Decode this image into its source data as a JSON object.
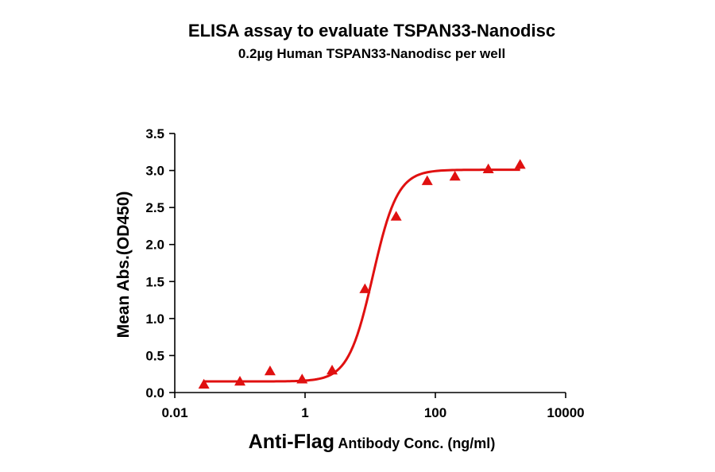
{
  "chart_data": {
    "type": "scatter",
    "title": "ELISA assay to evaluate TSPAN33-Nanodisc",
    "subtitle": "0.2µg Human TSPAN33-Nanodisc per well",
    "xlabel_bold": "Anti-Flag",
    "xlabel_rest": " Antibody Conc. (ng/ml)",
    "ylabel": "Mean Abs.(OD450)",
    "x_scale": "log",
    "xlim": [
      0.01,
      10000
    ],
    "ylim": [
      0,
      3.5
    ],
    "x_ticks": [
      0.01,
      1,
      100,
      10000
    ],
    "x_tick_labels": [
      "0.01",
      "1",
      "100",
      "10000"
    ],
    "y_ticks": [
      0,
      0.5,
      1,
      1.5,
      2,
      2.5,
      3,
      3.5
    ],
    "y_tick_labels": [
      "0.0",
      "0.5",
      "1.0",
      "1.5",
      "2.0",
      "2.5",
      "3.0",
      "3.5"
    ],
    "grid": false,
    "legend": "none",
    "marker": "triangle",
    "color": "#e01010",
    "series": [
      {
        "x": [
          0.028,
          0.1,
          0.29,
          0.9,
          2.6,
          8.3,
          25,
          75,
          200,
          650,
          2000
        ],
        "y": [
          0.11,
          0.15,
          0.29,
          0.18,
          0.3,
          1.4,
          2.38,
          2.86,
          2.92,
          3.02,
          3.08
        ]
      }
    ],
    "fit": {
      "model": "4PL",
      "bottom": 0.15,
      "top": 3.01,
      "ec50": 11,
      "hill": 2.3
    }
  }
}
